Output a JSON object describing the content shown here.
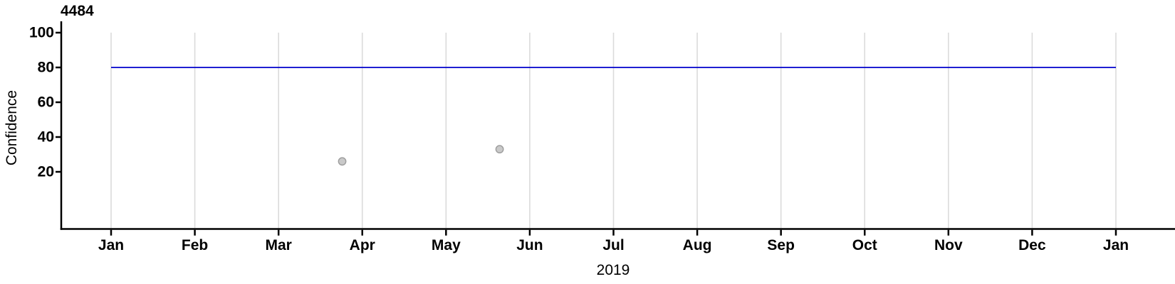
{
  "chart_data": {
    "type": "scatter",
    "title": "4484",
    "xlabel": "2019",
    "ylabel": "Confidence",
    "x_tick_labels": [
      "Jan",
      "Feb",
      "Mar",
      "Apr",
      "May",
      "Jun",
      "Jul",
      "Aug",
      "Sep",
      "Oct",
      "Nov",
      "Dec",
      "Jan"
    ],
    "x_tick_months": [
      0,
      1,
      2,
      3,
      4,
      5,
      6,
      7,
      8,
      9,
      10,
      11,
      12
    ],
    "y_ticks": [
      20,
      40,
      60,
      80,
      100
    ],
    "ylim": [
      -12.7,
      100
    ],
    "xlim_months": [
      -0.6,
      12.7
    ],
    "grid": "vertical-monthly-gridlines",
    "legend": "none",
    "points": [
      {
        "x_month": 2.76,
        "date_approx": "2019-03-24",
        "value": 26
      },
      {
        "x_month": 4.64,
        "date_approx": "2019-05-20",
        "value": 33
      }
    ],
    "reference_line": {
      "value": 80,
      "x_start_month": 0,
      "x_end_month": 12
    },
    "colors": {
      "reference_line": "#0000CC",
      "point_fill": "#C9C9C9",
      "point_stroke": "#9C9C9C",
      "gridline": "#DBDBDB",
      "axis": "#000000",
      "text": "#000000",
      "background": "#FFFFFF"
    }
  }
}
